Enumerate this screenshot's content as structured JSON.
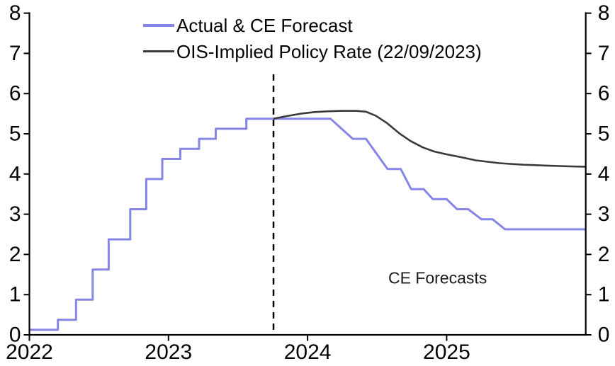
{
  "chart_data": {
    "type": "line",
    "title": "",
    "xlabel": "",
    "ylabel": "",
    "xlim": [
      2022,
      2026
    ],
    "ylim": [
      0,
      8
    ],
    "grid": false,
    "legend_position": "top-inside",
    "xtick_values": [
      2022,
      2023,
      2024,
      2025
    ],
    "xtick_labels": [
      "2022",
      "2023",
      "2024",
      "2025"
    ],
    "ytick_values": [
      0,
      1,
      2,
      3,
      4,
      5,
      6,
      7,
      8
    ],
    "ytick_labels_left": [
      "0",
      "1",
      "2",
      "3",
      "4",
      "5",
      "6",
      "7",
      "8"
    ],
    "ytick_labels_right": [
      "0",
      "1",
      "2",
      "3",
      "4",
      "5",
      "6",
      "7",
      "8"
    ],
    "series": [
      {
        "name": "Actual & CE Forecast",
        "color": "#8585e8",
        "width": 3,
        "points": [
          [
            2022.0,
            0.125
          ],
          [
            2022.205,
            0.125
          ],
          [
            2022.205,
            0.375
          ],
          [
            2022.335,
            0.375
          ],
          [
            2022.335,
            0.875
          ],
          [
            2022.455,
            0.875
          ],
          [
            2022.455,
            1.625
          ],
          [
            2022.57,
            1.625
          ],
          [
            2022.57,
            2.375
          ],
          [
            2022.725,
            2.375
          ],
          [
            2022.725,
            3.125
          ],
          [
            2022.84,
            3.125
          ],
          [
            2022.84,
            3.875
          ],
          [
            2022.955,
            3.875
          ],
          [
            2022.955,
            4.375
          ],
          [
            2023.085,
            4.375
          ],
          [
            2023.085,
            4.625
          ],
          [
            2023.22,
            4.625
          ],
          [
            2023.22,
            4.875
          ],
          [
            2023.34,
            4.875
          ],
          [
            2023.34,
            5.125
          ],
          [
            2023.56,
            5.125
          ],
          [
            2023.56,
            5.375
          ],
          [
            2024.165,
            5.375
          ],
          [
            2024.325,
            4.875
          ],
          [
            2024.42,
            4.875
          ],
          [
            2024.575,
            4.125
          ],
          [
            2024.67,
            4.125
          ],
          [
            2024.745,
            3.625
          ],
          [
            2024.835,
            3.625
          ],
          [
            2024.9,
            3.375
          ],
          [
            2025.0,
            3.375
          ],
          [
            2025.075,
            3.125
          ],
          [
            2025.155,
            3.125
          ],
          [
            2025.25,
            2.875
          ],
          [
            2025.33,
            2.875
          ],
          [
            2025.42,
            2.625
          ],
          [
            2026.0,
            2.625
          ]
        ]
      },
      {
        "name": "OIS-Implied Policy Rate (22/09/2023)",
        "color": "#3a3a3a",
        "width": 2.6,
        "points": [
          [
            2023.755,
            5.375
          ],
          [
            2023.85,
            5.44
          ],
          [
            2023.95,
            5.5
          ],
          [
            2024.05,
            5.54
          ],
          [
            2024.15,
            5.56
          ],
          [
            2024.25,
            5.57
          ],
          [
            2024.35,
            5.57
          ],
          [
            2024.42,
            5.55
          ],
          [
            2024.49,
            5.45
          ],
          [
            2024.57,
            5.27
          ],
          [
            2024.66,
            5.01
          ],
          [
            2024.74,
            4.82
          ],
          [
            2024.83,
            4.66
          ],
          [
            2024.91,
            4.56
          ],
          [
            2025.0,
            4.49
          ],
          [
            2025.1,
            4.42
          ],
          [
            2025.21,
            4.34
          ],
          [
            2025.38,
            4.27
          ],
          [
            2025.55,
            4.23
          ],
          [
            2025.72,
            4.21
          ],
          [
            2025.89,
            4.19
          ],
          [
            2026.0,
            4.18
          ]
        ]
      }
    ],
    "forecast_divider": {
      "x": 2023.755,
      "y_top": 6.48,
      "color": "#000000",
      "style": "dashed"
    },
    "annotation": {
      "text": "CE Forecasts",
      "x": 2024.935,
      "y": 1.42
    }
  }
}
